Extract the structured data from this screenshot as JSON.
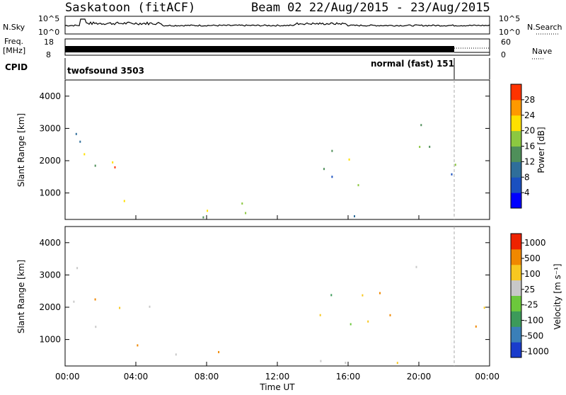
{
  "header": {
    "station": "Saskatoon (fitACF)",
    "beam_dates": "Beam 02  22/Aug/2015 - 23/Aug/2015"
  },
  "top_panels": {
    "nsky_label": "N.Sky",
    "nsky_ticks": [
      "10^5",
      "10^0"
    ],
    "nsearch_label": "N.Search",
    "nsearch_ticks": [
      "10^5",
      "10^0"
    ],
    "freq_label_1": "Freq.",
    "freq_label_2": "[MHz]",
    "freq_ticks": [
      "18",
      "8"
    ],
    "nave_label": "Nave",
    "nave_ticks": [
      "60",
      "0"
    ],
    "cpid_label": "CPID",
    "cpid_modes": [
      "twofsound 3503",
      "normal (fast) 151"
    ]
  },
  "chart_data": [
    {
      "type": "heatmap",
      "name": "power",
      "ylabel": "Slant Range [km]",
      "yticks": [
        "4000",
        "3000",
        "2000",
        "1000"
      ],
      "ylim": [
        180,
        4500
      ],
      "colorbar_label": "Power [dB]",
      "colorbar_ticks": [
        "28",
        "24",
        "20",
        "16",
        "12",
        "8",
        "4"
      ],
      "colors": [
        "#0000ff",
        "#1a50c0",
        "#2f6e9a",
        "#4f8f5a",
        "#8cc840",
        "#ffe000",
        "#ff9900",
        "#ff3300"
      ]
    },
    {
      "type": "heatmap",
      "name": "velocity",
      "ylabel": "Slant Range [km]",
      "yticks": [
        "4000",
        "3000",
        "2000",
        "1000"
      ],
      "ylim": [
        180,
        4500
      ],
      "colorbar_label": "Velocity [m s⁻¹]",
      "colorbar_ticks": [
        "1000",
        "500",
        "100",
        "25",
        "-25",
        "-100",
        "-500",
        "-1000"
      ],
      "colors": [
        "#1a3ccc",
        "#3a7fb8",
        "#3c9a5a",
        "#6cc83c",
        "#c8c8c8",
        "#f8c820",
        "#f08800",
        "#ee2200"
      ]
    }
  ],
  "xaxis": {
    "ticks": [
      "00:00",
      "04:00",
      "08:00",
      "12:00",
      "16:00",
      "20:00",
      "00:00"
    ],
    "label": "Time UT"
  }
}
